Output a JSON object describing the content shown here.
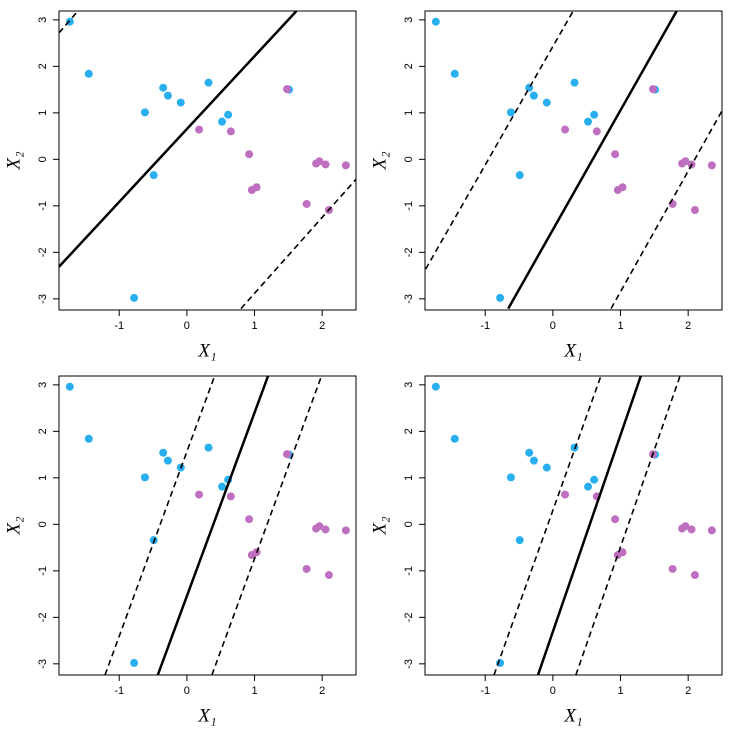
{
  "chart_data": [
    {
      "type": "scatter",
      "xlabel": "X₁",
      "ylabel": "X₂",
      "xlim": [
        -1.89,
        2.5
      ],
      "ylim": [
        -3.24,
        3.19
      ],
      "xticks": [
        -1,
        0,
        1,
        2
      ],
      "yticks": [
        -3,
        -2,
        -1,
        0,
        1,
        2,
        3
      ],
      "series": [
        {
          "color": "#29aff0",
          "x": [
            -1.73,
            -1.45,
            -0.35,
            -0.28,
            -0.09,
            0.32,
            -0.62,
            0.61,
            0.52,
            -0.49,
            -0.78,
            1.51
          ],
          "y": [
            2.96,
            1.84,
            1.54,
            1.37,
            1.22,
            1.65,
            1.01,
            0.96,
            0.81,
            -0.34,
            -2.98,
            1.5
          ]
        },
        {
          "color": "#bf6fbf",
          "x": [
            1.48,
            0.18,
            0.65,
            0.92,
            0.96,
            1.03,
            1.91,
            1.96,
            2.05,
            2.35,
            1.77,
            2.1
          ],
          "y": [
            1.51,
            0.64,
            0.6,
            0.11,
            -0.66,
            -0.6,
            -0.09,
            -0.04,
            -0.11,
            -0.13,
            -0.96,
            -1.09
          ]
        }
      ],
      "lines": [
        {
          "style": "solid",
          "x": [
            -1.89,
            1.62
          ],
          "y": [
            -2.31,
            3.19
          ]
        },
        {
          "style": "dashed",
          "x": [
            -1.89,
            -1.61
          ],
          "y": [
            2.72,
            3.19
          ]
        },
        {
          "style": "dashed",
          "x": [
            0.8,
            2.5
          ],
          "y": [
            -3.21,
            -0.43
          ]
        }
      ]
    },
    {
      "type": "scatter",
      "xlabel": "X₁",
      "ylabel": "X₂",
      "xlim": [
        -1.89,
        2.5
      ],
      "ylim": [
        -3.24,
        3.19
      ],
      "xticks": [
        -1,
        0,
        1,
        2
      ],
      "yticks": [
        -3,
        -2,
        -1,
        0,
        1,
        2,
        3
      ],
      "series": [
        {
          "color": "#29aff0",
          "x": [
            -1.73,
            -1.45,
            -0.35,
            -0.28,
            -0.09,
            0.32,
            -0.62,
            0.61,
            0.52,
            -0.49,
            -0.78,
            1.51
          ],
          "y": [
            2.96,
            1.84,
            1.54,
            1.37,
            1.22,
            1.65,
            1.01,
            0.96,
            0.81,
            -0.34,
            -2.98,
            1.5
          ]
        },
        {
          "color": "#bf6fbf",
          "x": [
            1.48,
            0.18,
            0.65,
            0.92,
            0.96,
            1.03,
            1.91,
            1.96,
            2.05,
            2.35,
            1.77,
            2.1
          ],
          "y": [
            1.51,
            0.64,
            0.6,
            0.11,
            -0.66,
            -0.6,
            -0.09,
            -0.04,
            -0.11,
            -0.13,
            -0.96,
            -1.09
          ]
        }
      ],
      "lines": [
        {
          "style": "solid",
          "x": [
            -0.66,
            1.83
          ],
          "y": [
            -3.21,
            3.19
          ]
        },
        {
          "style": "dashed",
          "x": [
            -1.88,
            0.3
          ],
          "y": [
            -2.36,
            3.19
          ]
        },
        {
          "style": "dashed",
          "x": [
            0.86,
            2.51
          ],
          "y": [
            -3.21,
            1.07
          ]
        }
      ]
    },
    {
      "type": "scatter",
      "xlabel": "X₁",
      "ylabel": "X₂",
      "xlim": [
        -1.89,
        2.5
      ],
      "ylim": [
        -3.24,
        3.19
      ],
      "xticks": [
        -1,
        0,
        1,
        2
      ],
      "yticks": [
        -3,
        -2,
        -1,
        0,
        1,
        2,
        3
      ],
      "series": [
        {
          "color": "#29aff0",
          "x": [
            -1.73,
            -1.45,
            -0.35,
            -0.28,
            -0.09,
            0.32,
            -0.62,
            0.61,
            0.52,
            -0.49,
            -0.78,
            1.51
          ],
          "y": [
            2.96,
            1.84,
            1.54,
            1.37,
            1.22,
            1.65,
            1.01,
            0.96,
            0.81,
            -0.34,
            -2.98,
            1.5
          ]
        },
        {
          "color": "#bf6fbf",
          "x": [
            1.48,
            0.18,
            0.65,
            0.92,
            0.96,
            1.03,
            1.91,
            1.96,
            2.05,
            2.35,
            1.77,
            2.1
          ],
          "y": [
            1.51,
            0.64,
            0.6,
            0.11,
            -0.66,
            -0.6,
            -0.09,
            -0.04,
            -0.11,
            -0.13,
            -0.96,
            -1.09
          ]
        }
      ],
      "lines": [
        {
          "style": "solid",
          "x": [
            -0.43,
            1.2
          ],
          "y": [
            -3.24,
            3.19
          ]
        },
        {
          "style": "dashed",
          "x": [
            -1.21,
            0.41
          ],
          "y": [
            -3.24,
            3.19
          ]
        },
        {
          "style": "dashed",
          "x": [
            0.37,
            1.99
          ],
          "y": [
            -3.24,
            3.19
          ]
        }
      ]
    },
    {
      "type": "scatter",
      "xlabel": "X₁",
      "ylabel": "X₂",
      "xlim": [
        -1.89,
        2.5
      ],
      "ylim": [
        -3.24,
        3.19
      ],
      "xticks": [
        -1,
        0,
        1,
        2
      ],
      "yticks": [
        -3,
        -2,
        -1,
        0,
        1,
        2,
        3
      ],
      "series": [
        {
          "color": "#29aff0",
          "x": [
            -1.73,
            -1.45,
            -0.35,
            -0.28,
            -0.09,
            0.32,
            -0.62,
            0.61,
            0.52,
            -0.49,
            -0.78,
            1.51
          ],
          "y": [
            2.96,
            1.84,
            1.54,
            1.37,
            1.22,
            1.65,
            1.01,
            0.96,
            0.81,
            -0.34,
            -2.98,
            1.5
          ]
        },
        {
          "color": "#bf6fbf",
          "x": [
            1.48,
            0.18,
            0.65,
            0.92,
            0.96,
            1.03,
            1.91,
            1.96,
            2.05,
            2.35,
            1.77,
            2.1
          ],
          "y": [
            1.51,
            0.64,
            0.6,
            0.11,
            -0.66,
            -0.6,
            -0.09,
            -0.04,
            -0.11,
            -0.13,
            -0.96,
            -1.09
          ]
        }
      ],
      "lines": [
        {
          "style": "solid",
          "x": [
            -0.22,
            1.3
          ],
          "y": [
            -3.24,
            3.19
          ]
        },
        {
          "style": "dashed",
          "x": [
            -0.87,
            0.71
          ],
          "y": [
            -3.24,
            3.19
          ]
        },
        {
          "style": "dashed",
          "x": [
            0.34,
            1.88
          ],
          "y": [
            -3.24,
            3.19
          ]
        }
      ]
    }
  ]
}
